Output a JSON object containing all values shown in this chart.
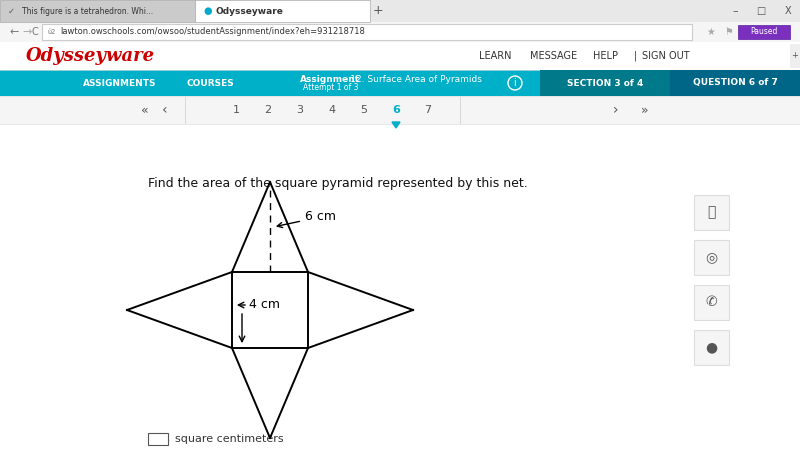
{
  "bg_color": "#f1f1f1",
  "white": "#ffffff",
  "tab_bar_color": "#e8e8e8",
  "nav_bar_color": "#f9f9f9",
  "teal_color": "#00b0c8",
  "dark_teal": "#007a8a",
  "blue_tab_color": "#0099bb",
  "question_tab_color": "#006688",
  "title_text": "Find the area of the square pyramid represented by this net.",
  "label_6cm": "6 cm",
  "label_4cm": "← 4 cm",
  "label_sq_cm": "square centimeters",
  "line_color": "#000000",
  "line_width": 1.4,
  "browser_tab1": "This figure is a tetrahedron. Whi...",
  "browser_tab2": "Odysseyware",
  "url": "lawton.owschools.com/owsoo/studentAssignment/index?eh=931218718",
  "nav_learn": "LEARN",
  "nav_message": "MESSAGE",
  "nav_help": "HELP",
  "nav_signout": "SIGN OUT",
  "assign_label": "Assignment",
  "assign_title": " – 12. Surface Area of Pyramids",
  "assign_sub": "Attempt 1 of 3",
  "section_label": "SECTION 3 of 4",
  "question_label": "QUESTION 6 of 7",
  "left_nav": [
    "ASSIGNMENTS",
    "COURSES"
  ],
  "page_numbers": [
    "1",
    "2",
    "3",
    "4",
    "5",
    "6",
    "7"
  ],
  "current_page": "6",
  "odysseyware_color": "#cc0000",
  "gray_border": "#cccccc",
  "light_gray": "#e0e0e0"
}
